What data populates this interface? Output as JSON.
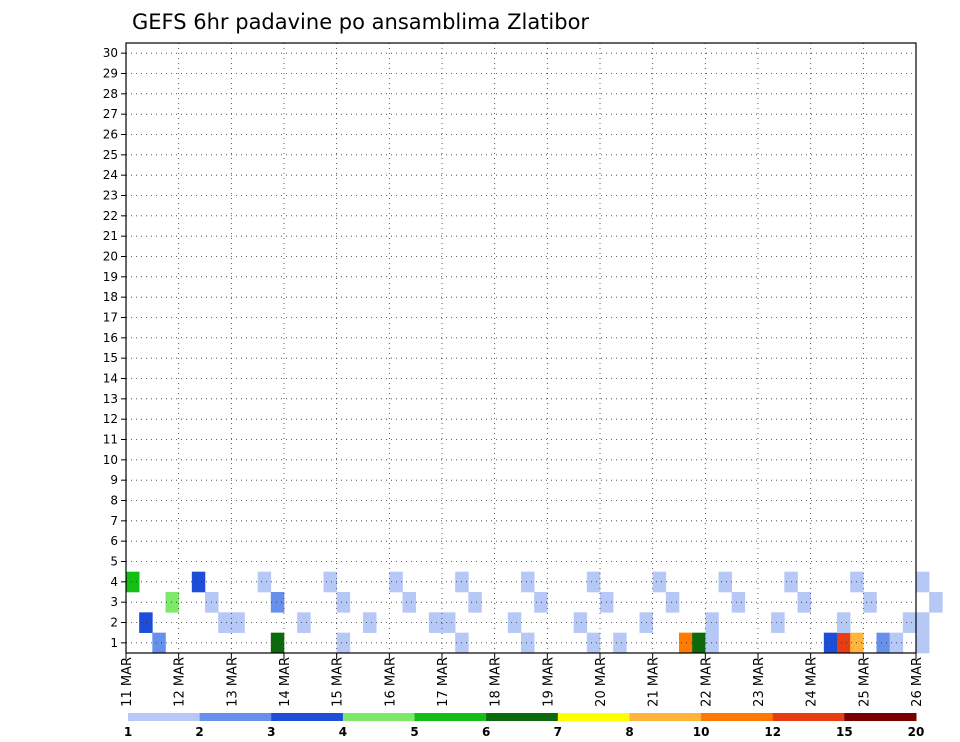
{
  "chart_data": {
    "type": "heatmap",
    "title": "GEFS 6hr padavine po ansamblima Zlatibor",
    "y_categories": [
      "1",
      "2",
      "3",
      "4",
      "5",
      "6",
      "7",
      "8",
      "9",
      "10",
      "11",
      "12",
      "13",
      "14",
      "15",
      "16",
      "17",
      "18",
      "19",
      "20",
      "21",
      "22",
      "23",
      "24",
      "25",
      "26",
      "27",
      "28",
      "29",
      "30"
    ],
    "x_ticks": [
      "11 MAR",
      "12 MAR",
      "13 MAR",
      "14 MAR",
      "15 MAR",
      "16 MAR",
      "17 MAR",
      "18 MAR",
      "19 MAR",
      "20 MAR",
      "21 MAR",
      "22 MAR",
      "23 MAR",
      "24 MAR",
      "25 MAR",
      "26 MAR"
    ],
    "x_range": [
      "11 MAR 00",
      "26 MAR 00"
    ],
    "steps_per_day": 4,
    "colorbar": {
      "tick_labels": [
        "1",
        "2",
        "3",
        "4",
        "5",
        "6",
        "7",
        "8",
        "10",
        "12",
        "15",
        "20"
      ],
      "colors": [
        "#b6c8f5",
        "#6690ec",
        "#1e4ed8",
        "#7ee86a",
        "#14be14",
        "#0b6b0b",
        "#ffff00",
        "#ffb43c",
        "#ff7a00",
        "#e83c14",
        "#7a0000"
      ]
    },
    "grid": "dotted",
    "cells": [
      {
        "member": 1,
        "day": 11.0,
        "step": 2,
        "level": 1
      },
      {
        "member": 1,
        "day": 13.0,
        "step": 3,
        "level": 5
      },
      {
        "member": 1,
        "day": 15.0,
        "step": 0,
        "level": 0
      },
      {
        "member": 1,
        "day": 17.0,
        "step": 1,
        "level": 0
      },
      {
        "member": 1,
        "day": 18.0,
        "step": 2,
        "level": 0
      },
      {
        "member": 1,
        "day": 19.0,
        "step": 3,
        "level": 0
      },
      {
        "member": 1,
        "day": 20.0,
        "step": 1,
        "level": 0
      },
      {
        "member": 1,
        "day": 21.0,
        "step": 2,
        "level": 8
      },
      {
        "member": 1,
        "day": 21.0,
        "step": 3,
        "level": 5
      },
      {
        "member": 1,
        "day": 22.0,
        "step": 0,
        "level": 0
      },
      {
        "member": 1,
        "day": 24.0,
        "step": 1,
        "level": 2
      },
      {
        "member": 1,
        "day": 24.0,
        "step": 2,
        "level": 9
      },
      {
        "member": 1,
        "day": 24.0,
        "step": 3,
        "level": 7
      },
      {
        "member": 1,
        "day": 25.0,
        "step": 1,
        "level": 1
      },
      {
        "member": 1,
        "day": 25.0,
        "step": 2,
        "level": 0
      },
      {
        "member": 1,
        "day": 26.0,
        "step": 0,
        "level": 0
      },
      {
        "member": 2,
        "day": 11.0,
        "step": 1,
        "level": 2
      },
      {
        "member": 2,
        "day": 12.0,
        "step": 3,
        "level": 0
      },
      {
        "member": 2,
        "day": 13.0,
        "step": 0,
        "level": 0
      },
      {
        "member": 2,
        "day": 14.0,
        "step": 1,
        "level": 0
      },
      {
        "member": 2,
        "day": 15.0,
        "step": 2,
        "level": 0
      },
      {
        "member": 2,
        "day": 16.0,
        "step": 3,
        "level": 0
      },
      {
        "member": 2,
        "day": 17.0,
        "step": 0,
        "level": 0
      },
      {
        "member": 2,
        "day": 18.0,
        "step": 1,
        "level": 0
      },
      {
        "member": 2,
        "day": 19.0,
        "step": 2,
        "level": 0
      },
      {
        "member": 2,
        "day": 20.0,
        "step": 3,
        "level": 0
      },
      {
        "member": 2,
        "day": 22.0,
        "step": 0,
        "level": 0
      },
      {
        "member": 2,
        "day": 23.0,
        "step": 1,
        "level": 0
      },
      {
        "member": 2,
        "day": 24.0,
        "step": 2,
        "level": 0
      },
      {
        "member": 2,
        "day": 25.0,
        "step": 3,
        "level": 0
      },
      {
        "member": 2,
        "day": 26.0,
        "step": 0,
        "level": 0
      },
      {
        "member": 3,
        "day": 11.0,
        "step": 3,
        "level": 3
      },
      {
        "member": 3,
        "day": 12.0,
        "step": 2,
        "level": 0
      },
      {
        "member": 3,
        "day": 13.0,
        "step": 3,
        "level": 1
      },
      {
        "member": 3,
        "day": 15.0,
        "step": 0,
        "level": 0
      },
      {
        "member": 3,
        "day": 16.0,
        "step": 1,
        "level": 0
      },
      {
        "member": 3,
        "day": 17.0,
        "step": 2,
        "level": 0
      },
      {
        "member": 3,
        "day": 18.0,
        "step": 3,
        "level": 0
      },
      {
        "member": 3,
        "day": 20.0,
        "step": 0,
        "level": 0
      },
      {
        "member": 3,
        "day": 21.0,
        "step": 1,
        "level": 0
      },
      {
        "member": 3,
        "day": 22.0,
        "step": 2,
        "level": 0
      },
      {
        "member": 3,
        "day": 23.0,
        "step": 3,
        "level": 0
      },
      {
        "member": 3,
        "day": 25.0,
        "step": 0,
        "level": 0
      },
      {
        "member": 3,
        "day": 26.0,
        "step": 1,
        "level": 0
      },
      {
        "member": 4,
        "day": 11.0,
        "step": 0,
        "level": 4
      },
      {
        "member": 4,
        "day": 12.0,
        "step": 1,
        "level": 2
      },
      {
        "member": 4,
        "day": 13.0,
        "step": 2,
        "level": 0
      },
      {
        "member": 4,
        "day": 14.0,
        "step": 3,
        "level": 0
      },
      {
        "member": 4,
        "day": 16.0,
        "step": 0,
        "level": 0
      },
      {
        "member": 4,
        "day": 17.0,
        "step": 1,
        "level": 0
      },
      {
        "member": 4,
        "day": 18.0,
        "step": 2,
        "level": 0
      },
      {
        "member": 4,
        "day": 19.0,
        "step": 3,
        "level": 0
      },
      {
        "member": 4,
        "day": 21.0,
        "step": 0,
        "level": 0
      },
      {
        "member": 4,
        "day": 22.0,
        "step": 1,
        "level": 0
      },
      {
        "member": 4,
        "day": 23.0,
        "step": 2,
        "level": 0
      },
      {
        "member": 4,
        "day": 24.0,
        "step": 3,
        "level": 0
      },
      {
        "member": 4,
        "day": 26.0,
        "step": 0,
        "level": 0
      }
    ],
    "ylabel": "",
    "xlabel": ""
  }
}
